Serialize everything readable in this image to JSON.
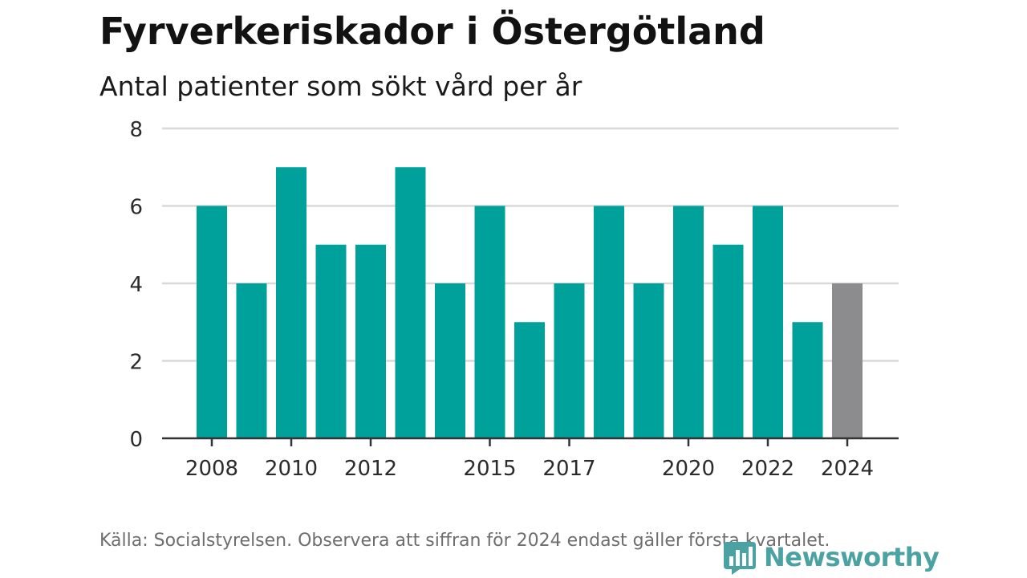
{
  "title": "Fyrverkeriskador i Östergötland",
  "subtitle": "Antal patienter som sökt vård per år",
  "footnote": "Källa: Socialstyrelsen. Observera att siffran för 2024 endast gäller första kvartalet.",
  "logo": {
    "text": "Newsworthy",
    "icon": "bar-chart-logo-icon"
  },
  "colors": {
    "bar": "#00a19a",
    "highlight": "#8c8c8e",
    "grid": "#d9d9d9",
    "axis": "#333333",
    "logo": "#4aa3a2"
  },
  "chart_data": {
    "type": "bar",
    "title": "Fyrverkeriskador i Östergötland",
    "subtitle": "Antal patienter som sökt vård per år",
    "categories": [
      "2008",
      "2009",
      "2010",
      "2011",
      "2012",
      "2013",
      "2014",
      "2015",
      "2016",
      "2017",
      "2018",
      "2019",
      "2020",
      "2021",
      "2022",
      "2023",
      "2024"
    ],
    "values": [
      6,
      4,
      7,
      5,
      5,
      7,
      4,
      6,
      3,
      4,
      6,
      4,
      6,
      5,
      6,
      3,
      4
    ],
    "highlight_categories": [
      "2024"
    ],
    "x_tick_labels": [
      "2008",
      "2010",
      "2012",
      "2015",
      "2017",
      "2020",
      "2022",
      "2024"
    ],
    "y_ticks": [
      0,
      2,
      4,
      6,
      8
    ],
    "ylim": [
      0,
      8
    ],
    "xlabel": "",
    "ylabel": "",
    "grid": true,
    "legend": "none"
  }
}
